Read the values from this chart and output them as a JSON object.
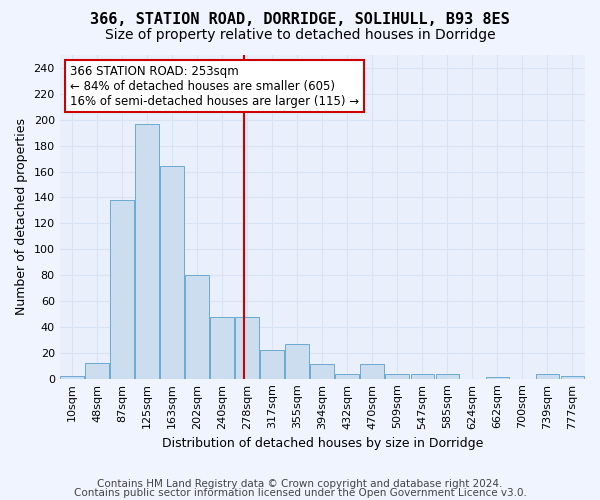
{
  "title1": "366, STATION ROAD, DORRIDGE, SOLIHULL, B93 8ES",
  "title2": "Size of property relative to detached houses in Dorridge",
  "xlabel": "Distribution of detached houses by size in Dorridge",
  "ylabel": "Number of detached properties",
  "footnote1": "Contains HM Land Registry data © Crown copyright and database right 2024.",
  "footnote2": "Contains public sector information licensed under the Open Government Licence v3.0.",
  "bar_labels": [
    "10sqm",
    "48sqm",
    "87sqm",
    "125sqm",
    "163sqm",
    "202sqm",
    "240sqm",
    "278sqm",
    "317sqm",
    "355sqm",
    "394sqm",
    "432sqm",
    "470sqm",
    "509sqm",
    "547sqm",
    "585sqm",
    "624sqm",
    "662sqm",
    "700sqm",
    "739sqm",
    "777sqm"
  ],
  "bar_values": [
    2,
    12,
    138,
    197,
    164,
    80,
    48,
    48,
    22,
    27,
    11,
    4,
    11,
    4,
    4,
    4,
    0,
    1,
    0,
    4,
    2
  ],
  "bar_color": "#ccddf0",
  "bar_edge_color": "#6aaad4",
  "annotation_text": "366 STATION ROAD: 253sqm\n← 84% of detached houses are smaller (605)\n16% of semi-detached houses are larger (115) →",
  "vline_x": 6.87,
  "vline_color": "#cc0000",
  "bg_color": "#eaf0fb",
  "grid_color": "#d8e4f4",
  "ylim": [
    0,
    250
  ],
  "yticks": [
    0,
    20,
    40,
    60,
    80,
    100,
    120,
    140,
    160,
    180,
    200,
    220,
    240
  ],
  "annot_box_color": "#ffffff",
  "annot_box_edge_color": "#cc0000",
  "title1_fontsize": 11,
  "title2_fontsize": 10,
  "xlabel_fontsize": 9,
  "ylabel_fontsize": 9,
  "tick_fontsize": 8,
  "annot_fontsize": 8.5,
  "footnote_fontsize": 7.5
}
